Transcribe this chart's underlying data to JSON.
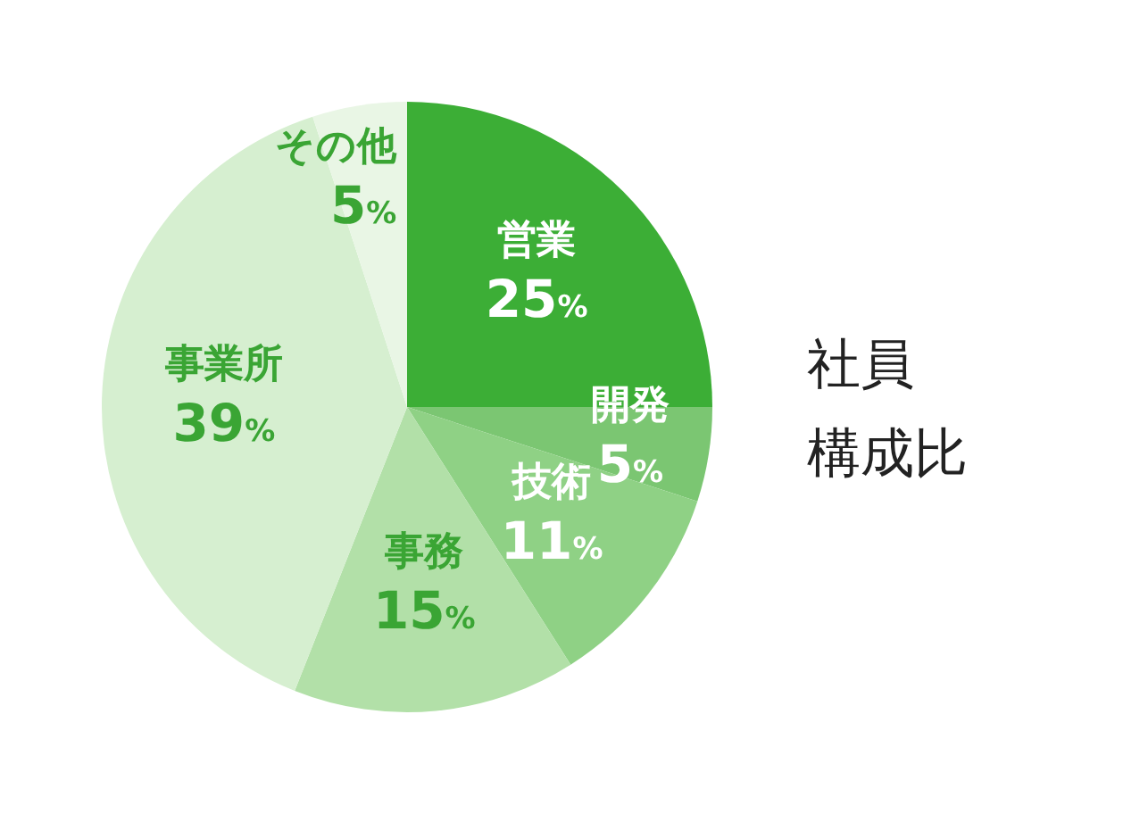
{
  "chart_data": {
    "type": "pie",
    "title": "社員構成比",
    "categories": [
      "営業",
      "開発",
      "技術",
      "事務",
      "事業所",
      "その他"
    ],
    "values": [
      25,
      5,
      11,
      15,
      39,
      5
    ],
    "value_labels": [
      "25%",
      "5%",
      "11%",
      "15%",
      "39%",
      "5%"
    ],
    "colors": [
      "#3cae36",
      "#7bc672",
      "#8fd185",
      "#b2e0a8",
      "#d6efd0",
      "#e9f6e5"
    ]
  }
}
